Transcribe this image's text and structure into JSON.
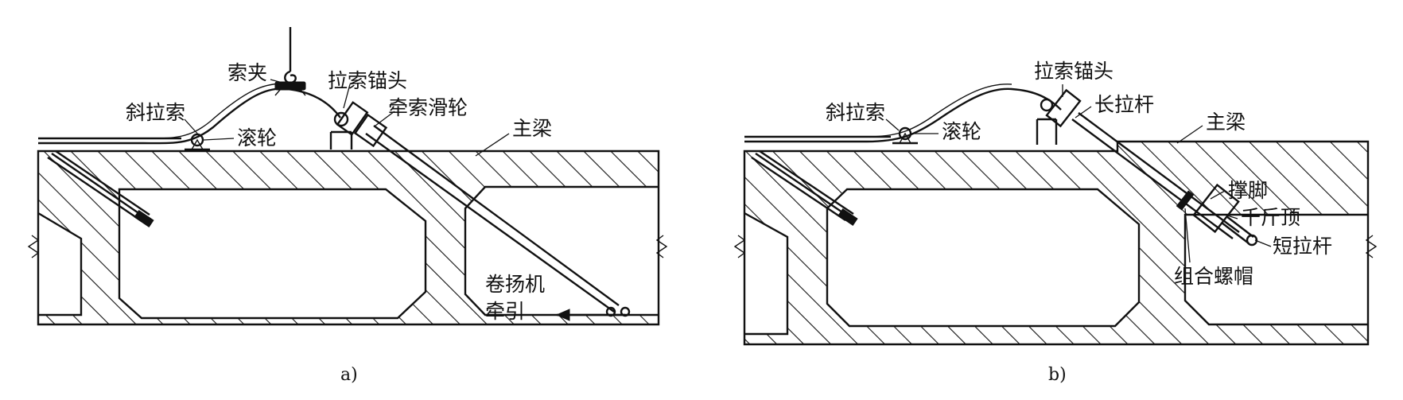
{
  "diagram_a": {
    "caption": "a)",
    "labels": {
      "cable_clamp": "索夹",
      "stay_cable": "斜拉索",
      "cable_anchor_head": "拉索锚头",
      "roller": "滚轮",
      "traction_pulley": "牵索滑轮",
      "main_girder": "主梁",
      "winch_line1": "卷扬机",
      "winch_line2": "牵引"
    }
  },
  "diagram_b": {
    "caption": "b)",
    "labels": {
      "stay_cable": "斜拉索",
      "cable_anchor_head": "拉索锚头",
      "roller": "滚轮",
      "long_tie_rod": "长拉杆",
      "main_girder": "主梁",
      "strut": "撑脚",
      "jack": "千斤顶",
      "short_tie_rod": "短拉杆",
      "combined_nut": "组合螺帽"
    }
  },
  "colors": {
    "ink": "#111111",
    "background": "#ffffff"
  }
}
